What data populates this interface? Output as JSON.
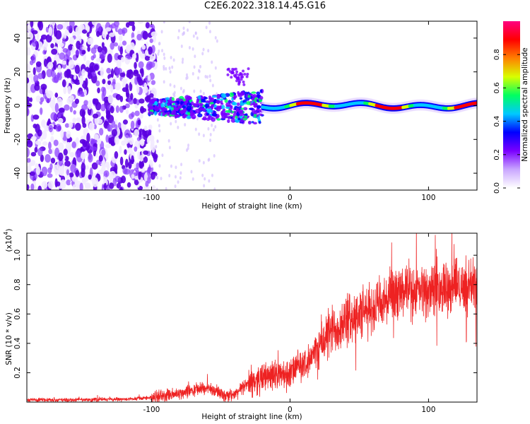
{
  "title": "C2E6.2022.318.14.45.G16",
  "colors": {
    "spec_low": "#f2eaff",
    "spec_mid": "#8a3cff",
    "spec_high": "#5b00e0",
    "snr_line": "#ee2222"
  },
  "chart_data": [
    {
      "type": "heatmap",
      "xlabel": "Height of straight line (km)",
      "ylabel": "Frequency (Hz)",
      "xlim": [
        -190,
        135
      ],
      "ylim": [
        -50,
        50
      ],
      "xticks": [
        "-100",
        "0",
        "100"
      ],
      "yticks": [
        "40",
        "20",
        "0",
        "-20",
        "-40"
      ],
      "xtick_values": [
        -100,
        0,
        100
      ],
      "ytick_values": [
        40,
        20,
        0,
        -20,
        -40
      ],
      "colorbar": {
        "label": "Normalized spectral amplitude",
        "range": [
          0.0,
          1.0
        ],
        "ticks": [
          "0.0",
          "0.2",
          "0.4",
          "0.6",
          "0.8"
        ],
        "tick_values": [
          0.0,
          0.2,
          0.4,
          0.6,
          0.8
        ],
        "colormap": [
          "#ffffff",
          "#c9a6ff",
          "#7a00ff",
          "#0000ff",
          "#00c8ff",
          "#00ff60",
          "#d8ff00",
          "#ff8000",
          "#ff0000",
          "#ff0080"
        ]
      },
      "features": {
        "noise_region_x": [
          -190,
          -97
        ],
        "stable_band_x": [
          -20,
          135
        ],
        "band_center_hz": 0
      }
    },
    {
      "type": "line",
      "xlabel": "Height of straight line (km)",
      "ylabel": "SNR (10 * v/v)",
      "multiplier_label": "(x10",
      "multiplier_exp": "4",
      "xlim": [
        -190,
        135
      ],
      "ylim": [
        0,
        1.15
      ],
      "xticks": [
        "-100",
        "0",
        "100"
      ],
      "yticks": [
        "1.0",
        "0.8",
        "0.6",
        "0.4",
        "0.2"
      ],
      "xtick_values": [
        -100,
        0,
        100
      ],
      "ytick_values": [
        1.0,
        0.8,
        0.6,
        0.4,
        0.2
      ],
      "series": [
        {
          "x": [
            -190,
            -150,
            -120,
            -100,
            -85,
            -70,
            -60,
            -50,
            -42,
            -35,
            -28,
            -20,
            -12,
            -5,
            0,
            5,
            10,
            15,
            20,
            25,
            30,
            35,
            40,
            45,
            50,
            55,
            60,
            65,
            70,
            75,
            80,
            85,
            90,
            95,
            100,
            105,
            110,
            115,
            120,
            125,
            130,
            135
          ],
          "values": [
            0.015,
            0.015,
            0.02,
            0.03,
            0.05,
            0.08,
            0.1,
            0.06,
            0.04,
            0.09,
            0.14,
            0.16,
            0.2,
            0.18,
            0.19,
            0.24,
            0.26,
            0.3,
            0.36,
            0.43,
            0.48,
            0.52,
            0.55,
            0.57,
            0.6,
            0.61,
            0.64,
            0.66,
            0.69,
            0.72,
            0.74,
            0.75,
            0.74,
            0.76,
            0.75,
            0.78,
            0.77,
            0.79,
            0.8,
            0.79,
            0.8,
            0.82
          ]
        }
      ]
    }
  ]
}
